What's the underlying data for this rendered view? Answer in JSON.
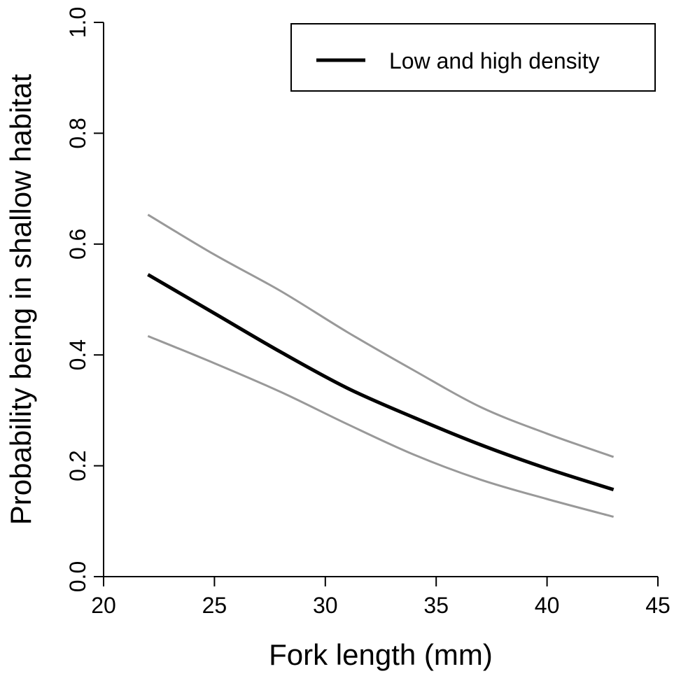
{
  "chart_data": {
    "type": "line",
    "title": "",
    "xlabel": "Fork length (mm)",
    "ylabel": "Probability being in shallow habitat",
    "xlim": [
      20,
      45
    ],
    "ylim": [
      0,
      1
    ],
    "xticks": [
      "20",
      "25",
      "30",
      "35",
      "40",
      "45"
    ],
    "yticks": [
      "0.0",
      "0.2",
      "0.4",
      "0.6",
      "0.8",
      "1.0"
    ],
    "grid": false,
    "legend": {
      "position": "top-right",
      "entries": [
        "Low and high density"
      ]
    },
    "x": [
      22,
      25,
      28,
      31,
      34,
      37,
      40,
      43
    ],
    "series": [
      {
        "name": "Low and high density",
        "role": "fit",
        "color": "#000000",
        "values": [
          0.545,
          0.475,
          0.405,
          0.34,
          0.287,
          0.238,
          0.195,
          0.157
        ]
      },
      {
        "role": "upper",
        "color": "#999999",
        "values": [
          0.653,
          0.581,
          0.515,
          0.441,
          0.372,
          0.306,
          0.258,
          0.216
        ]
      },
      {
        "role": "lower",
        "color": "#999999",
        "values": [
          0.434,
          0.385,
          0.333,
          0.275,
          0.22,
          0.175,
          0.14,
          0.108
        ]
      }
    ]
  }
}
